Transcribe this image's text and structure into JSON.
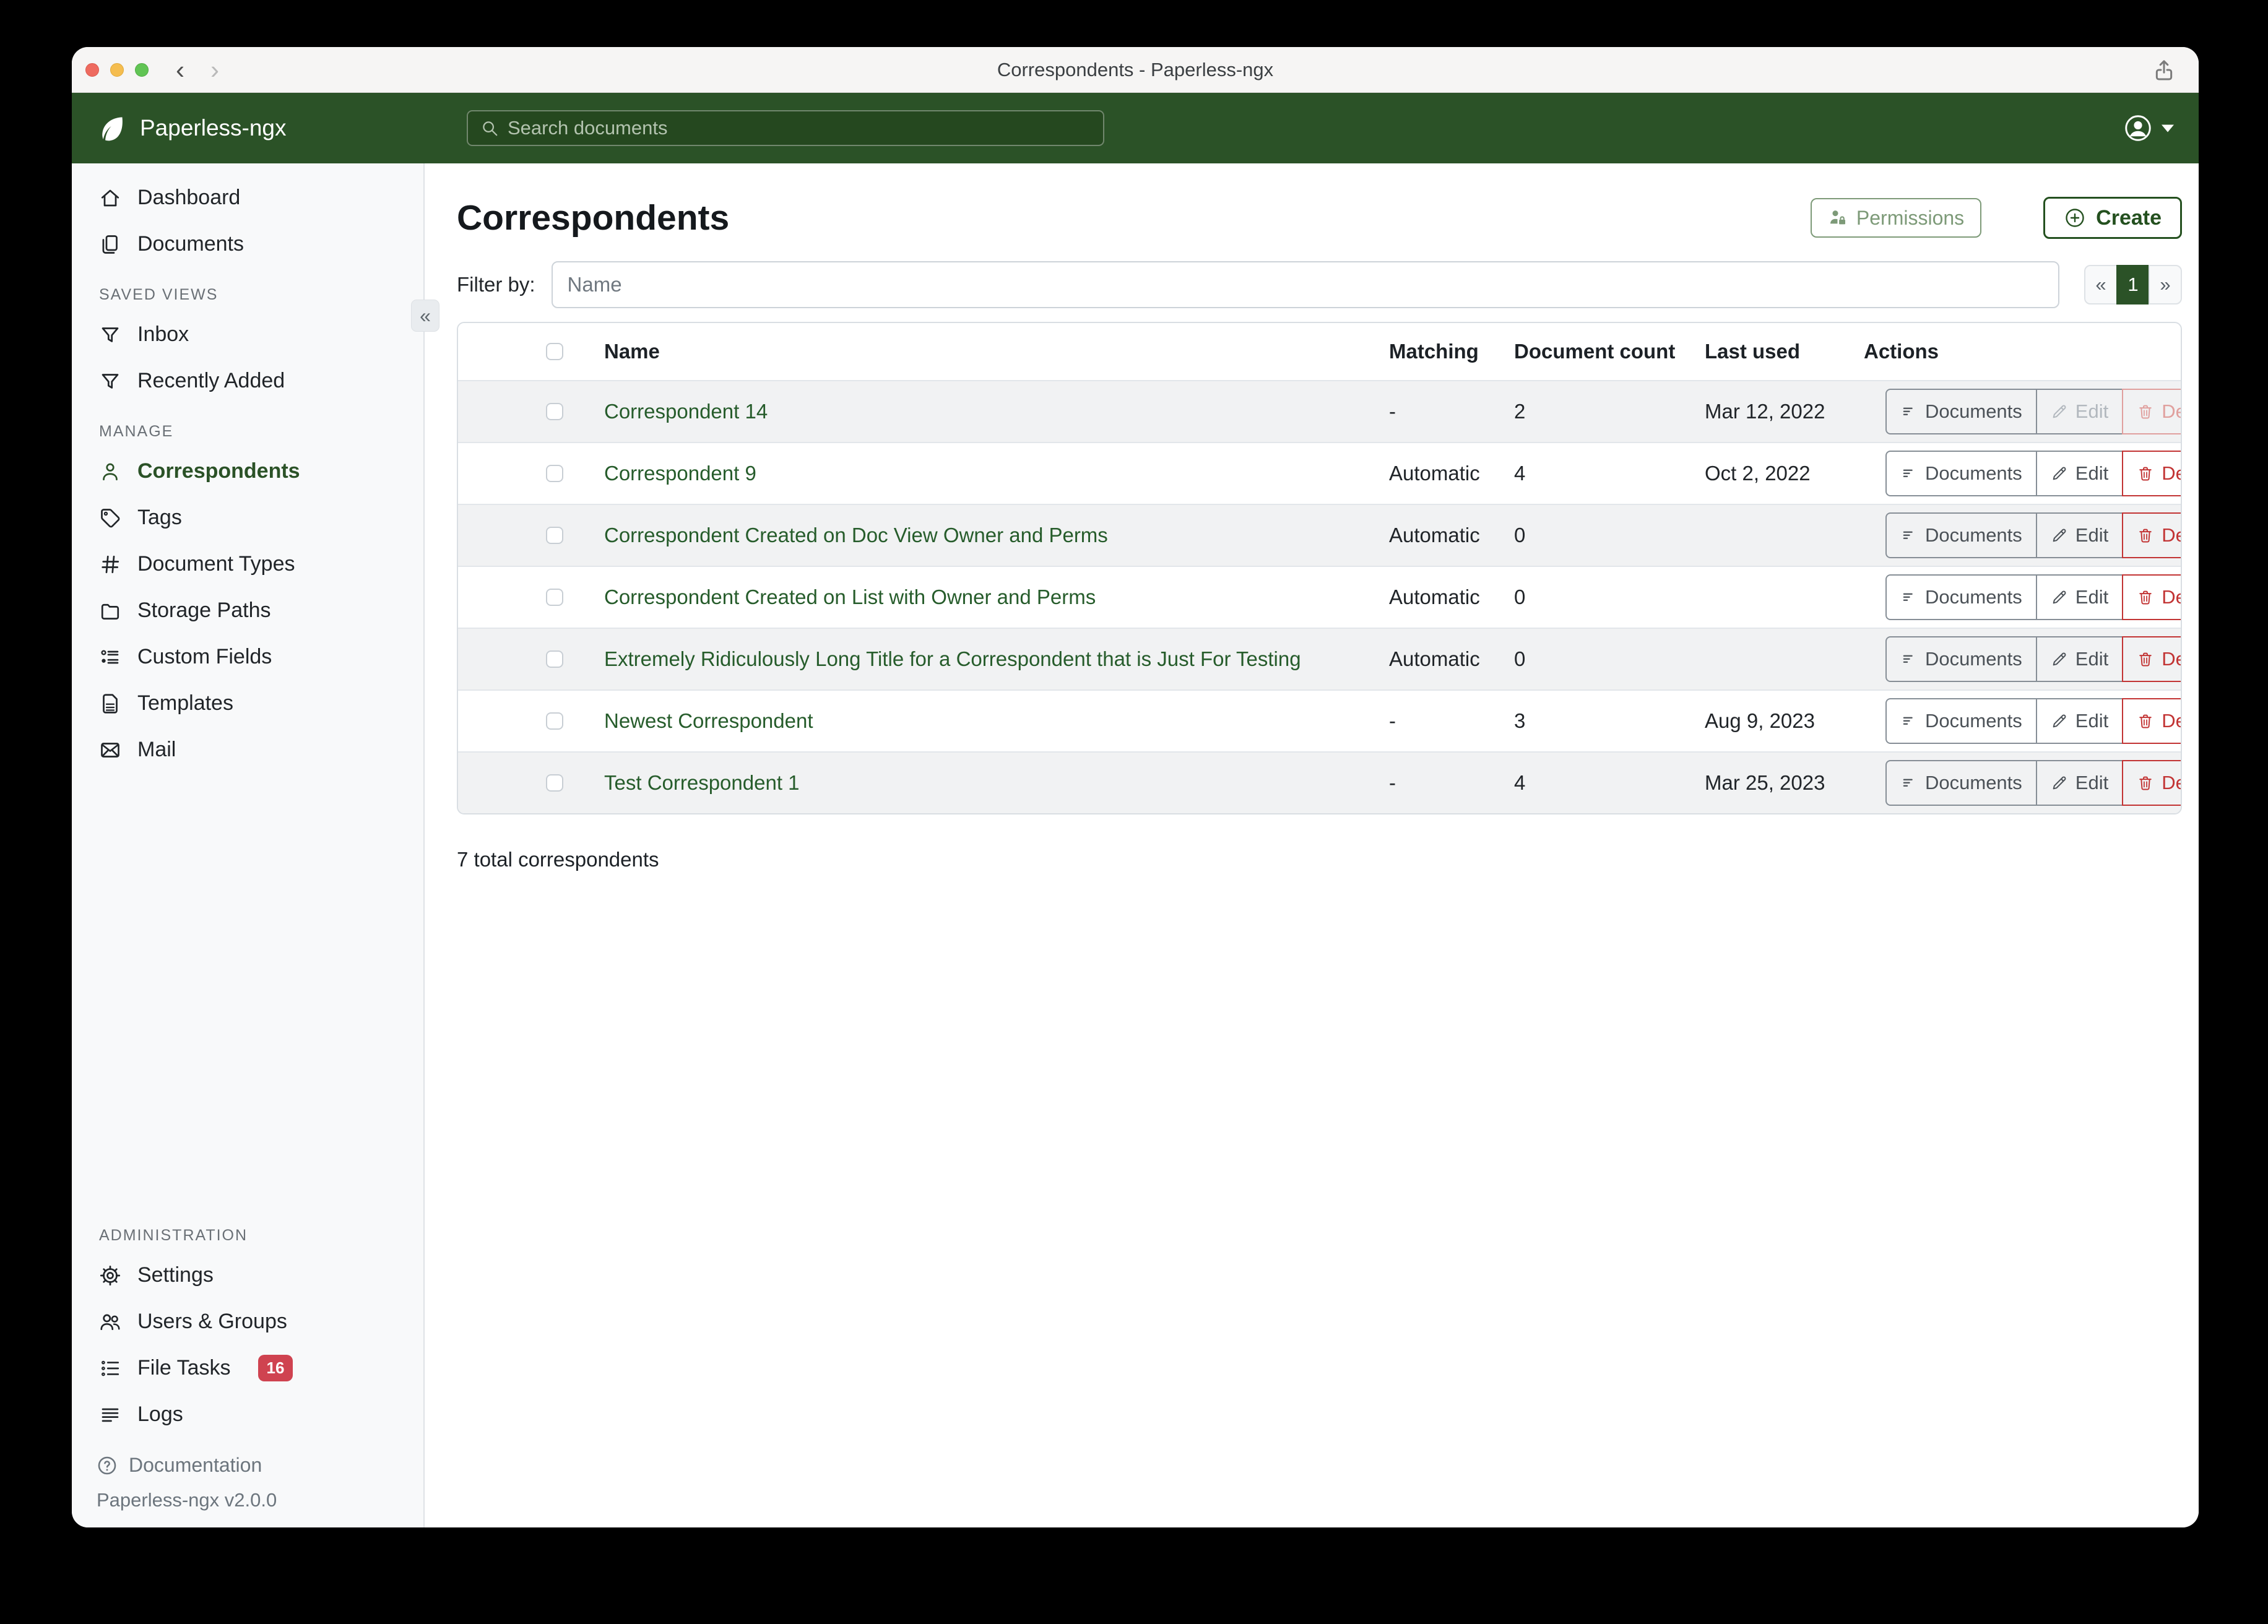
{
  "window": {
    "title": "Correspondents - Paperless-ngx"
  },
  "navbar": {
    "brand": "Paperless-ngx",
    "search_placeholder": "Search documents"
  },
  "sidebar": {
    "sections": [
      {
        "label": "",
        "items": [
          {
            "label": "Dashboard",
            "icon": "home"
          },
          {
            "label": "Documents",
            "icon": "docs"
          }
        ]
      },
      {
        "label": "SAVED VIEWS",
        "items": [
          {
            "label": "Inbox",
            "icon": "funnel"
          },
          {
            "label": "Recently Added",
            "icon": "funnel"
          }
        ]
      },
      {
        "label": "MANAGE",
        "items": [
          {
            "label": "Correspondents",
            "icon": "person",
            "active": true
          },
          {
            "label": "Tags",
            "icon": "tag"
          },
          {
            "label": "Document Types",
            "icon": "hash"
          },
          {
            "label": "Storage Paths",
            "icon": "folder"
          },
          {
            "label": "Custom Fields",
            "icon": "fields"
          },
          {
            "label": "Templates",
            "icon": "file"
          },
          {
            "label": "Mail",
            "icon": "mail"
          }
        ]
      },
      {
        "label": "ADMINISTRATION",
        "pinned": true,
        "items": [
          {
            "label": "Settings",
            "icon": "gear"
          },
          {
            "label": "Users & Groups",
            "icon": "users"
          },
          {
            "label": "File Tasks",
            "icon": "tasks",
            "badge": "16"
          },
          {
            "label": "Logs",
            "icon": "logs"
          }
        ]
      }
    ],
    "documentation_label": "Documentation",
    "version": "Paperless-ngx v2.0.0"
  },
  "page": {
    "title": "Correspondents",
    "permissions_label": "Permissions",
    "create_label": "Create",
    "filter_label": "Filter by:",
    "filter_placeholder": "Name",
    "pagination": {
      "prev": "«",
      "current": "1",
      "next": "»"
    },
    "footer": "7 total correspondents"
  },
  "table": {
    "headers": [
      "Name",
      "Matching",
      "Document count",
      "Last used",
      "Actions"
    ],
    "actions": {
      "documents": "Documents",
      "edit": "Edit",
      "delete": "Delete"
    },
    "rows": [
      {
        "name": "Correspondent 14",
        "matching": "-",
        "count": "2",
        "last_used": "Mar 12, 2022",
        "muted": true
      },
      {
        "name": "Correspondent 9",
        "matching": "Automatic",
        "count": "4",
        "last_used": "Oct 2, 2022",
        "muted": false
      },
      {
        "name": "Correspondent Created on Doc View Owner and Perms",
        "matching": "Automatic",
        "count": "0",
        "last_used": "",
        "muted": false
      },
      {
        "name": "Correspondent Created on List with Owner and Perms",
        "matching": "Automatic",
        "count": "0",
        "last_used": "",
        "muted": false
      },
      {
        "name": "Extremely Ridiculously Long Title for a Correspondent that is Just For Testing",
        "matching": "Automatic",
        "count": "0",
        "last_used": "",
        "muted": false
      },
      {
        "name": "Newest Correspondent",
        "matching": "-",
        "count": "3",
        "last_used": "Aug 9, 2023",
        "muted": false
      },
      {
        "name": "Test Correspondent 1",
        "matching": "-",
        "count": "4",
        "last_used": "Mar 25, 2023",
        "muted": false
      }
    ]
  },
  "colors": {
    "brand_green": "#2b5227",
    "link_green": "#265c2b",
    "danger_red": "#c23434",
    "badge_red": "#cf4350",
    "sidebar_bg": "#f8f9fa"
  }
}
